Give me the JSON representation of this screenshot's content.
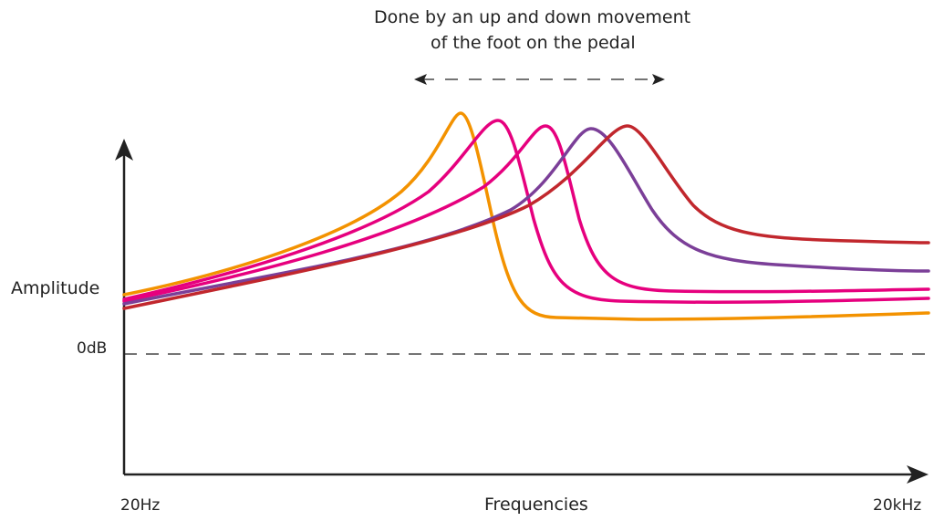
{
  "annotation": {
    "line1": "Done by an up and down movement",
    "line2": "of the foot on the pedal"
  },
  "axes": {
    "y_label": "Amplitude",
    "reference_label": "0dB",
    "x_label": "Frequencies",
    "x_min_label": "20Hz",
    "x_max_label": "20kHz"
  },
  "curves": [
    {
      "color": "#F39200"
    },
    {
      "color": "#E6007E"
    },
    {
      "color": "#E6007E"
    },
    {
      "color": "#7B3F98"
    },
    {
      "color": "#C1272D"
    }
  ],
  "colors": {
    "axis": "#222222"
  }
}
